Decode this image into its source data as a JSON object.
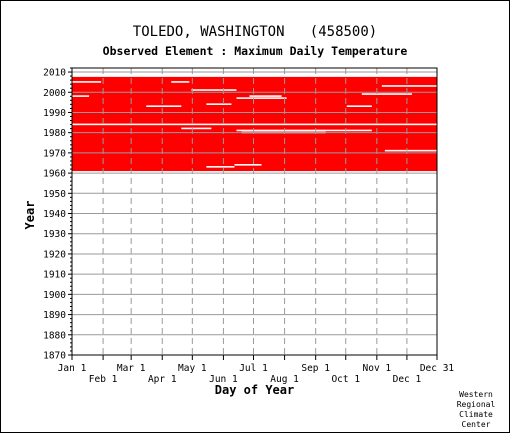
{
  "chart_data": {
    "type": "heatmap",
    "title": "TOLEDO, WASHINGTON   (458500)",
    "subtitle": "Observed Element : Maximum Daily Temperature",
    "xlabel": "Day of Year",
    "ylabel": "Year",
    "ylim": [
      1870,
      2012
    ],
    "y_ticks": [
      1870,
      1880,
      1890,
      1900,
      1910,
      1920,
      1930,
      1940,
      1950,
      1960,
      1970,
      1980,
      1990,
      2000,
      2010
    ],
    "x_ticks_upper": [
      {
        "label": "Jan 1",
        "day": 1
      },
      {
        "label": "Mar 1",
        "day": 60
      },
      {
        "label": "May 1",
        "day": 121
      },
      {
        "label": "Jul 1",
        "day": 182
      },
      {
        "label": "Sep 1",
        "day": 244
      },
      {
        "label": "Nov 1",
        "day": 305
      },
      {
        "label": "Dec 31",
        "day": 365
      }
    ],
    "x_ticks_lower": [
      {
        "label": "Feb 1",
        "day": 32
      },
      {
        "label": "Apr 1",
        "day": 91
      },
      {
        "label": "Jun 1",
        "day": 152
      },
      {
        "label": "Aug 1",
        "day": 213
      },
      {
        "label": "Oct 1",
        "day": 274
      },
      {
        "label": "Dec 1",
        "day": 335
      }
    ],
    "grid": true,
    "data_color": "#ff0000",
    "data_present_years": [
      1961,
      2007
    ],
    "data_gaps": [
      {
        "year": 1963,
        "day_start": 135,
        "day_end": 163
      },
      {
        "year": 1964,
        "day_start": 163,
        "day_end": 190
      },
      {
        "year": 1971,
        "day_start": 313,
        "day_end": 365
      },
      {
        "year": 1980,
        "day_start": 170,
        "day_end": 254
      },
      {
        "year": 1981,
        "day_start": 165,
        "day_end": 300
      },
      {
        "year": 1982,
        "day_start": 110,
        "day_end": 140
      },
      {
        "year": 1984,
        "day_start": 1,
        "day_end": 365
      },
      {
        "year": 1993,
        "day_start": 75,
        "day_end": 110
      },
      {
        "year": 1993,
        "day_start": 275,
        "day_end": 300
      },
      {
        "year": 1994,
        "day_start": 135,
        "day_end": 160
      },
      {
        "year": 1997,
        "day_start": 165,
        "day_end": 215
      },
      {
        "year": 1998,
        "day_start": 1,
        "day_end": 18
      },
      {
        "year": 1998,
        "day_start": 178,
        "day_end": 210
      },
      {
        "year": 1999,
        "day_start": 290,
        "day_end": 340
      },
      {
        "year": 2001,
        "day_start": 120,
        "day_end": 165
      },
      {
        "year": 2003,
        "day_start": 310,
        "day_end": 365
      },
      {
        "year": 2005,
        "day_start": 1,
        "day_end": 30
      },
      {
        "year": 2005,
        "day_start": 100,
        "day_end": 118
      }
    ],
    "credit": [
      "Western",
      "Regional",
      "Climate",
      "Center"
    ]
  }
}
